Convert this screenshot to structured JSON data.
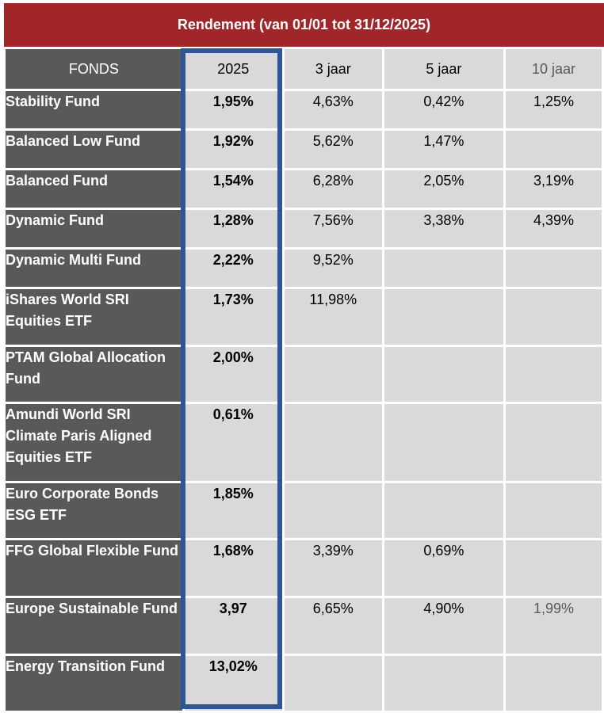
{
  "title": "Rendement (van 01/01 tot 31/12/2025)",
  "headers": {
    "fund": "FONDS",
    "y2025": "2025",
    "y3": "3 jaar",
    "y5": "5 jaar",
    "y10": "10 jaar"
  },
  "rows": [
    {
      "fund": "Stability Fund",
      "y2025": "1,95%",
      "y3": "4,63%",
      "y5": "0,42%",
      "y10": "1,25%"
    },
    {
      "fund": "Balanced Low Fund",
      "y2025": "1,92%",
      "y3": "5,62%",
      "y5": "1,47%",
      "y10": ""
    },
    {
      "fund": "Balanced Fund",
      "y2025": "1,54%",
      "y3": "6,28%",
      "y5": "2,05%",
      "y10": "3,19%"
    },
    {
      "fund": "Dynamic Fund",
      "y2025": "1,28%",
      "y3": "7,56%",
      "y5": "3,38%",
      "y10": "4,39%"
    },
    {
      "fund": "Dynamic Multi Fund",
      "y2025": "2,22%",
      "y3": "9,52%",
      "y5": "",
      "y10": ""
    },
    {
      "fund": "iShares World SRI Equities ETF",
      "y2025": "1,73%",
      "y3": "11,98%",
      "y5": "",
      "y10": ""
    },
    {
      "fund": "PTAM Global Allocation Fund",
      "y2025": "2,00%",
      "y3": "",
      "y5": "",
      "y10": ""
    },
    {
      "fund": "Amundi World SRI Climate Paris Aligned Equities ETF",
      "y2025": "0,61%",
      "y3": "",
      "y5": "",
      "y10": ""
    },
    {
      "fund": "Euro Corporate Bonds ESG ETF",
      "y2025": "1,85%",
      "y3": "",
      "y5": "",
      "y10": ""
    },
    {
      "fund": "FFG Global Flexible Fund",
      "y2025": "1,68%",
      "y3": "3,39%",
      "y5": "0,69%",
      "y10": ""
    },
    {
      "fund": "Europe Sustainable Fund",
      "y2025": "3,97",
      "y3": "6,65%",
      "y5": "4,90%",
      "y10": "1,99%"
    },
    {
      "fund": "Energy Transition Fund",
      "y2025": "13,02%",
      "y3": "",
      "y5": "",
      "y10": ""
    }
  ],
  "colors": {
    "title_bg": "#a0262a",
    "fund_bg": "#595959",
    "cell_bg": "#d9d9d9",
    "highlight_border": "#2f5597"
  }
}
